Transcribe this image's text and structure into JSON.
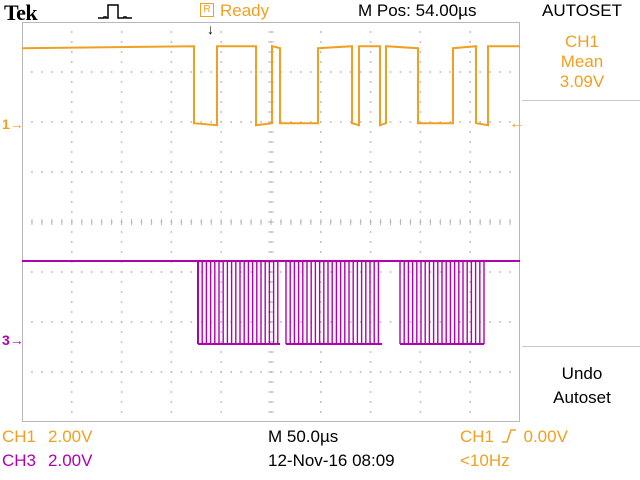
{
  "header": {
    "brand": "Tek",
    "trigger_icon": "pulse-trigger-icon",
    "status": "Ready",
    "status_icon": "R",
    "position": "M Pos: 54.00µs"
  },
  "side_menu": {
    "title": "AUTOSET",
    "items": [
      {
        "lines": [
          "CH1",
          "Mean",
          "3.09V"
        ]
      },
      {
        "lines": [
          "Undo",
          "Autoset"
        ]
      }
    ]
  },
  "markers": {
    "ch1": "1→",
    "ch3": "3→",
    "trigger_level": "←",
    "trigger_position": "↓"
  },
  "footer": {
    "ch1_label": "CH1",
    "ch1_scale": "2.00V",
    "ch3_label": "CH3",
    "ch3_scale": "2.00V",
    "timebase": "M 50.0µs",
    "datetime": "12-Nov-16 08:09",
    "trigger_source": "CH1",
    "trigger_level": "0.00V",
    "trigger_slope_icon": "rising-edge-icon",
    "frequency": "<10Hz"
  },
  "colors": {
    "ch1": "#f0a020",
    "ch3": "#b000b0",
    "grid": "#b8b8b8"
  },
  "waveforms": {
    "ch1_levels": [
      "high",
      "high",
      "high",
      "high",
      "low",
      "high",
      "high",
      "low",
      "high",
      "low",
      "high",
      "low",
      "high",
      "low",
      "high",
      "low",
      "high",
      "low",
      "high",
      "high",
      "low",
      "high",
      "high"
    ],
    "ch3_density": "high-frequency burst"
  }
}
